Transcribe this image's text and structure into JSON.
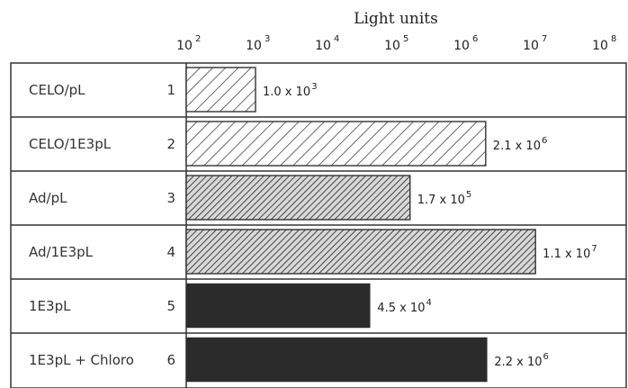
{
  "chart_data": {
    "type": "bar",
    "orientation": "horizontal",
    "title": "",
    "xlabel": "Light units",
    "xscale": "log10",
    "xlim": [
      100,
      100000000
    ],
    "tick_labels": [
      {
        "base": "10",
        "exp": "2"
      },
      {
        "base": "10",
        "exp": "3"
      },
      {
        "base": "10",
        "exp": "4"
      },
      {
        "base": "10",
        "exp": "5"
      },
      {
        "base": "10",
        "exp": "6"
      },
      {
        "base": "10",
        "exp": "7"
      },
      {
        "base": "10",
        "exp": "8"
      }
    ],
    "rows": [
      {
        "label": "CELO/pL",
        "num": "1",
        "value": 1000,
        "fill": "hatch-light",
        "text": {
          "mant": "1.0 x 10",
          "exp": "3"
        }
      },
      {
        "label": "CELO/1E3pL",
        "num": "2",
        "value": 2100000,
        "fill": "hatch-light",
        "text": {
          "mant": "2.1 x 10",
          "exp": "6"
        }
      },
      {
        "label": "Ad/pL",
        "num": "3",
        "value": 170000,
        "fill": "hatch-dense",
        "text": {
          "mant": "1.7 x 10",
          "exp": "5"
        }
      },
      {
        "label": "Ad/1E3pL",
        "num": "4",
        "value": 11000000,
        "fill": "hatch-dense",
        "text": {
          "mant": "1.1 x 10",
          "exp": "7"
        }
      },
      {
        "label": "1E3pL",
        "num": "5",
        "value": 45000,
        "fill": "solid",
        "text": {
          "mant": "4.5 x 10",
          "exp": "4"
        }
      },
      {
        "label": "1E3pL + Chloro",
        "num": "6",
        "value": 2200000,
        "fill": "solid",
        "text": {
          "mant": "2.2 x 10",
          "exp": "6"
        }
      }
    ],
    "colors": {
      "line": "#333333",
      "solid": "#2b2b2b",
      "hatch": "#444444"
    },
    "grid": false,
    "legend": "none"
  }
}
